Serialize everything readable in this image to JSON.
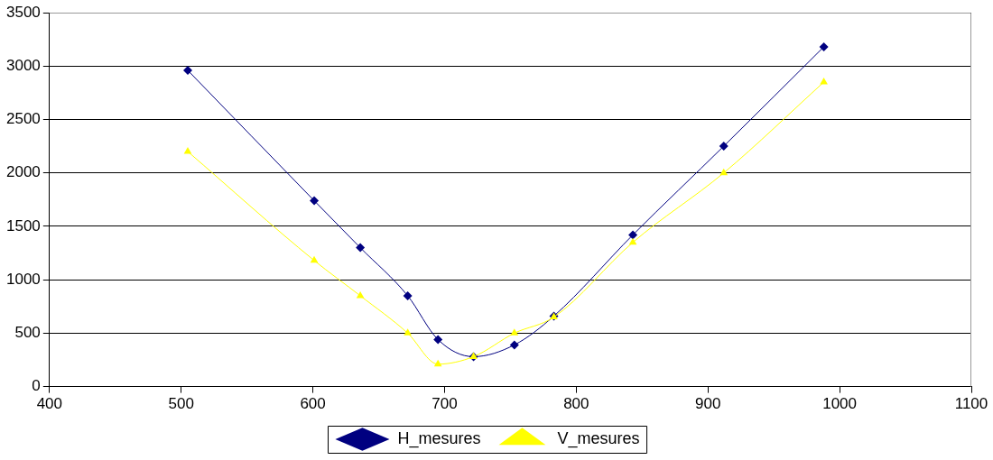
{
  "chart_data": {
    "type": "line",
    "xlim": [
      400,
      1100
    ],
    "xticks": [
      400,
      500,
      600,
      700,
      800,
      900,
      1000,
      1100
    ],
    "ylim": [
      0,
      3500
    ],
    "yticks": [
      0,
      500,
      1000,
      1500,
      2000,
      2500,
      3000,
      3500
    ],
    "grid": "y",
    "legend": "bottom",
    "series": [
      {
        "name": "H_mesures",
        "color": "#000080",
        "marker": "diamond",
        "x": [
          505,
          601,
          636,
          672,
          695,
          722,
          753,
          783,
          843,
          912,
          988
        ],
        "values": [
          2960,
          1740,
          1300,
          850,
          440,
          280,
          390,
          660,
          1420,
          2250,
          3180
        ]
      },
      {
        "name": "V_mesures",
        "color": "#ffff00",
        "marker": "triangle",
        "x": [
          505,
          601,
          636,
          672,
          695,
          722,
          753,
          783,
          843,
          912,
          988
        ],
        "values": [
          2200,
          1180,
          850,
          500,
          210,
          280,
          500,
          650,
          1350,
          2000,
          2850
        ]
      }
    ]
  }
}
